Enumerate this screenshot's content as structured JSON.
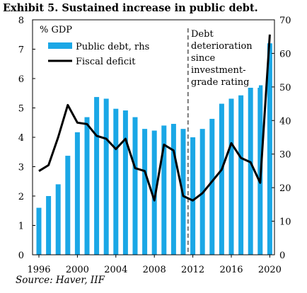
{
  "title": "Exhibit  5. Sustained increase in public debt.",
  "source": "Source: Haver, IIF",
  "chart_data": {
    "type": "bar+line",
    "unit_label": "% GDP",
    "annotation": [
      "Debt",
      "deterioration",
      "since",
      "investment-",
      "grade rating"
    ],
    "left_axis": {
      "ticks": [
        "0",
        "1",
        "2",
        "3",
        "4",
        "5",
        "6",
        "7",
        "8"
      ],
      "ylim": [
        0,
        8
      ]
    },
    "right_axis": {
      "ticks": [
        "0",
        "10",
        "20",
        "30",
        "40",
        "50",
        "60",
        "70"
      ],
      "ylim": [
        0,
        70
      ]
    },
    "x_ticks": [
      "1996",
      "2000",
      "2004",
      "2008",
      "2012",
      "2016",
      "2020"
    ],
    "years": [
      1996,
      1997,
      1998,
      1999,
      2000,
      2001,
      2002,
      2003,
      2004,
      2005,
      2006,
      2007,
      2008,
      2009,
      2010,
      2011,
      2012,
      2013,
      2014,
      2015,
      2016,
      2017,
      2018,
      2019,
      2020
    ],
    "reference_line_year": 2011.5,
    "grid": false,
    "legend_position": "top-left",
    "series": [
      {
        "name": "Public debt, rhs",
        "type": "bar",
        "axis": "right",
        "color": "#1aa7e6",
        "values": [
          14,
          17.5,
          21,
          29.5,
          36.5,
          41,
          47,
          46.5,
          43.5,
          43,
          41,
          37.5,
          37,
          38.5,
          39,
          37.5,
          35,
          37.5,
          40.5,
          45,
          46.5,
          47.5,
          50,
          50.5,
          63
        ]
      },
      {
        "name": "Fiscal deficit",
        "type": "line",
        "axis": "left",
        "color": "#000000",
        "values": [
          2.85,
          3.05,
          4.0,
          5.1,
          4.5,
          4.45,
          4.05,
          3.95,
          3.6,
          3.95,
          2.95,
          2.85,
          1.85,
          3.75,
          3.55,
          2.0,
          1.85,
          2.1,
          2.5,
          2.9,
          3.8,
          3.3,
          3.15,
          2.45,
          7.5
        ]
      }
    ]
  }
}
